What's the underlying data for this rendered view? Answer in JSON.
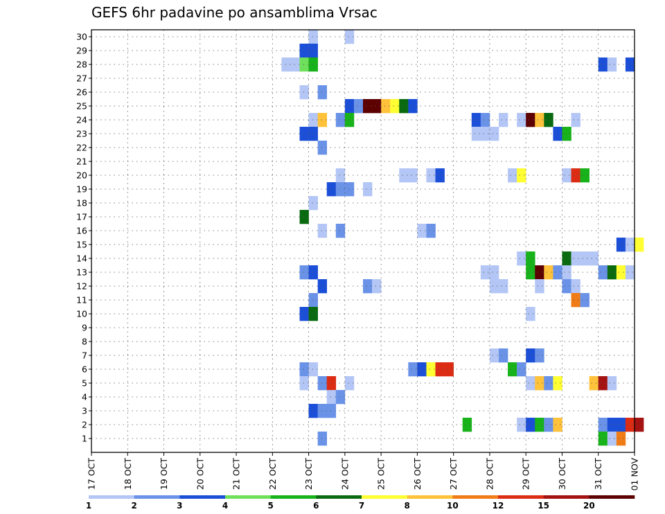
{
  "chart_data": {
    "type": "heatmap",
    "title": "GEFS 6hr padavine po ansamblima Vrsac",
    "xlabel": "",
    "ylabel": "",
    "x_tick_labels": [
      "17 OCT",
      "18 OCT",
      "19 OCT",
      "20 OCT",
      "21 OCT",
      "22 OCT",
      "23 OCT",
      "24 OCT",
      "25 OCT",
      "26 OCT",
      "27 OCT",
      "28 OCT",
      "29 OCT",
      "30 OCT",
      "31 OCT",
      "01 NOV"
    ],
    "y_tick_labels": [
      "1",
      "2",
      "3",
      "4",
      "5",
      "6",
      "7",
      "8",
      "9",
      "10",
      "11",
      "12",
      "13",
      "14",
      "15",
      "16",
      "17",
      "18",
      "19",
      "20",
      "21",
      "22",
      "23",
      "24",
      "25",
      "26",
      "27",
      "28",
      "29",
      "30"
    ],
    "y_range": [
      0,
      30
    ],
    "grid": true,
    "x_unit": "6-hour step from 17 OCT 00Z (4 steps per day)",
    "legend": {
      "position": "bottom",
      "boundaries": [
        "1",
        "2",
        "3",
        "4",
        "5",
        "6",
        "7",
        "8",
        "10",
        "12",
        "15",
        "20"
      ],
      "colors": [
        "#b3c6f5",
        "#6a93e8",
        "#1c4fd8",
        "#6fe05a",
        "#18b21a",
        "#0a6a10",
        "#ffff33",
        "#ffc23a",
        "#f07c17",
        "#dc2c14",
        "#a41212",
        "#5c0000"
      ]
    },
    "cells": [
      [
        24,
        30,
        1
      ],
      [
        28,
        30,
        1
      ],
      [
        23,
        29,
        3
      ],
      [
        24,
        29,
        3
      ],
      [
        21,
        28,
        1
      ],
      [
        22,
        28,
        1
      ],
      [
        23,
        28,
        4
      ],
      [
        24,
        28,
        5
      ],
      [
        56,
        28,
        3
      ],
      [
        57,
        28,
        1
      ],
      [
        59,
        28,
        3
      ],
      [
        23,
        26,
        1
      ],
      [
        25,
        26,
        2
      ],
      [
        28,
        25,
        3
      ],
      [
        29,
        25,
        2
      ],
      [
        30,
        25,
        20
      ],
      [
        31,
        25,
        20
      ],
      [
        32,
        25,
        8
      ],
      [
        33,
        25,
        7
      ],
      [
        34,
        25,
        6
      ],
      [
        35,
        25,
        3
      ],
      [
        24,
        24,
        1
      ],
      [
        25,
        24,
        8
      ],
      [
        27,
        24,
        2
      ],
      [
        28,
        24,
        5
      ],
      [
        42,
        24,
        3
      ],
      [
        43,
        24,
        2
      ],
      [
        45,
        24,
        1
      ],
      [
        47,
        24,
        1
      ],
      [
        48,
        24,
        20
      ],
      [
        49,
        24,
        8
      ],
      [
        50,
        24,
        6
      ],
      [
        53,
        24,
        1
      ],
      [
        23,
        23,
        3
      ],
      [
        24,
        23,
        3
      ],
      [
        42,
        23,
        1
      ],
      [
        43,
        23,
        1
      ],
      [
        44,
        23,
        1
      ],
      [
        51,
        23,
        3
      ],
      [
        52,
        23,
        5
      ],
      [
        25,
        22,
        2
      ],
      [
        27,
        20,
        1
      ],
      [
        34,
        20,
        1
      ],
      [
        35,
        20,
        1
      ],
      [
        37,
        20,
        1
      ],
      [
        38,
        20,
        3
      ],
      [
        46,
        20,
        1
      ],
      [
        47,
        20,
        7
      ],
      [
        52,
        20,
        1
      ],
      [
        53,
        20,
        12
      ],
      [
        54,
        20,
        5
      ],
      [
        26,
        19,
        3
      ],
      [
        27,
        19,
        2
      ],
      [
        28,
        19,
        2
      ],
      [
        30,
        19,
        1
      ],
      [
        24,
        18,
        1
      ],
      [
        23,
        17,
        6
      ],
      [
        25,
        16,
        1
      ],
      [
        27,
        16,
        2
      ],
      [
        36,
        16,
        1
      ],
      [
        37,
        16,
        2
      ],
      [
        58,
        15,
        3
      ],
      [
        59,
        15,
        1
      ],
      [
        60,
        15,
        7
      ],
      [
        47,
        14,
        1
      ],
      [
        48,
        14,
        5
      ],
      [
        52,
        14,
        6
      ],
      [
        53,
        14,
        1
      ],
      [
        54,
        14,
        1
      ],
      [
        55,
        14,
        1
      ],
      [
        23,
        13,
        2
      ],
      [
        24,
        13,
        3
      ],
      [
        43,
        13,
        1
      ],
      [
        44,
        13,
        1
      ],
      [
        48,
        13,
        5
      ],
      [
        49,
        13,
        20
      ],
      [
        50,
        13,
        8
      ],
      [
        51,
        13,
        2
      ],
      [
        52,
        13,
        1
      ],
      [
        56,
        13,
        2
      ],
      [
        57,
        13,
        6
      ],
      [
        58,
        13,
        7
      ],
      [
        59,
        13,
        1
      ],
      [
        25,
        12,
        3
      ],
      [
        30,
        12,
        2
      ],
      [
        31,
        12,
        1
      ],
      [
        44,
        12,
        1
      ],
      [
        45,
        12,
        1
      ],
      [
        49,
        12,
        1
      ],
      [
        52,
        12,
        2
      ],
      [
        53,
        12,
        1
      ],
      [
        24,
        11,
        2
      ],
      [
        53,
        11,
        10
      ],
      [
        54,
        11,
        2
      ],
      [
        23,
        10,
        3
      ],
      [
        24,
        10,
        6
      ],
      [
        48,
        10,
        1
      ],
      [
        44,
        7,
        1
      ],
      [
        45,
        7,
        2
      ],
      [
        48,
        7,
        3
      ],
      [
        49,
        7,
        2
      ],
      [
        23,
        6,
        2
      ],
      [
        24,
        6,
        1
      ],
      [
        35,
        6,
        2
      ],
      [
        36,
        6,
        3
      ],
      [
        37,
        6,
        7
      ],
      [
        38,
        6,
        12
      ],
      [
        39,
        6,
        12
      ],
      [
        46,
        6,
        5
      ],
      [
        47,
        6,
        2
      ],
      [
        23,
        5,
        1
      ],
      [
        25,
        5,
        2
      ],
      [
        26,
        5,
        12
      ],
      [
        28,
        5,
        1
      ],
      [
        48,
        5,
        1
      ],
      [
        49,
        5,
        8
      ],
      [
        50,
        5,
        2
      ],
      [
        51,
        5,
        7
      ],
      [
        55,
        5,
        8
      ],
      [
        56,
        5,
        15
      ],
      [
        57,
        5,
        1
      ],
      [
        26,
        4,
        1
      ],
      [
        27,
        4,
        2
      ],
      [
        24,
        3,
        3
      ],
      [
        25,
        3,
        2
      ],
      [
        26,
        3,
        2
      ],
      [
        41,
        2,
        5
      ],
      [
        47,
        2,
        1
      ],
      [
        48,
        2,
        3
      ],
      [
        49,
        2,
        5
      ],
      [
        50,
        2,
        2
      ],
      [
        51,
        2,
        8
      ],
      [
        56,
        2,
        2
      ],
      [
        57,
        2,
        3
      ],
      [
        58,
        2,
        3
      ],
      [
        59,
        2,
        12
      ],
      [
        60,
        2,
        15
      ],
      [
        25,
        1,
        2
      ],
      [
        56,
        1,
        5
      ],
      [
        57,
        1,
        1
      ],
      [
        58,
        1,
        10
      ]
    ]
  }
}
